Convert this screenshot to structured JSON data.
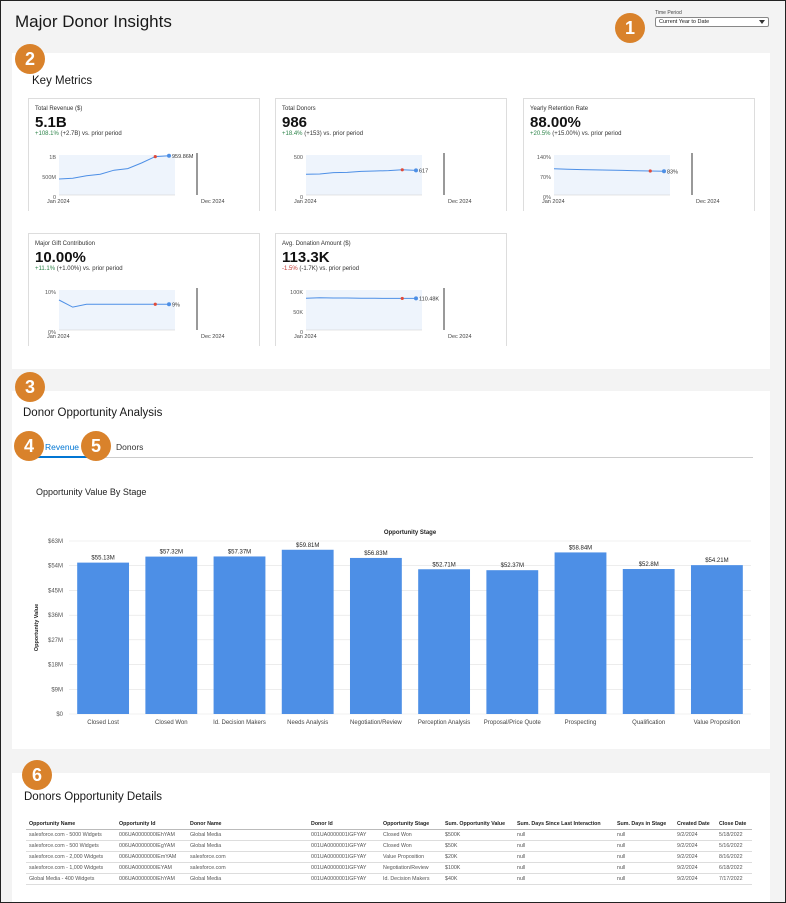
{
  "page": {
    "title": "Major Donor Insights"
  },
  "time_period": {
    "label": "Time Period",
    "value": "Current Year to Date"
  },
  "markers": [
    "1",
    "2",
    "3",
    "4",
    "5",
    "6"
  ],
  "key_metrics": {
    "title": "Key Metrics",
    "cards": [
      {
        "title": "Total Revenue ($)",
        "value": "5.1B",
        "change": "+108.1%",
        "change_detail": "(+2.7B) vs. prior period",
        "direction": "up",
        "y_ticks": [
          "1B",
          "500M",
          "0"
        ],
        "x_start": "Jan 2024",
        "x_end": "Dec 2024",
        "last_label": "959.86M",
        "spark": [
          0.4,
          0.42,
          0.48,
          0.52,
          0.62,
          0.66,
          0.8,
          0.96,
          0.98
        ],
        "spark_max": 1.0
      },
      {
        "title": "Total Donors",
        "value": "986",
        "change": "+18.4%",
        "change_detail": "(+153) vs. prior period",
        "direction": "up",
        "y_ticks": [
          "500",
          "0"
        ],
        "x_start": "Jan 2024",
        "x_end": "Dec 2024",
        "last_label": "617",
        "spark": [
          520,
          525,
          560,
          565,
          590,
          600,
          610,
          630,
          617
        ],
        "spark_max": 1000
      },
      {
        "title": "Yearly Retention Rate",
        "value": "88.00%",
        "change": "+20.5%",
        "change_detail": "(+15.00%) vs. prior period",
        "direction": "up",
        "y_ticks": [
          "140%",
          "70%",
          "0%"
        ],
        "x_start": "Jan 2024",
        "x_end": "Dec 2024",
        "last_label": "83%",
        "spark": [
          92,
          90,
          89,
          88,
          87,
          86,
          85,
          84,
          83
        ],
        "spark_max": 140
      },
      {
        "title": "Major Gift Contribution",
        "value": "10.00%",
        "change": "+11.1%",
        "change_detail": "(+1.00%) vs. prior period",
        "direction": "up",
        "y_ticks": [
          "10%",
          "0%"
        ],
        "x_start": "Jan 2024",
        "x_end": "Dec 2024",
        "last_label": "9%",
        "spark": [
          10.5,
          8,
          9,
          9,
          9,
          9,
          9,
          9,
          9
        ],
        "spark_max": 14
      },
      {
        "title": "Avg. Donation Amount ($)",
        "value": "113.3K",
        "change": "-1.5%",
        "change_detail": "(-1.7K) vs. prior period",
        "direction": "down",
        "y_ticks": [
          "100K",
          "50K",
          "0"
        ],
        "x_start": "Jan 2024",
        "x_end": "Dec 2024",
        "last_label": "110.48K",
        "spark": [
          111,
          113,
          112,
          112,
          111,
          111,
          110.5,
          110.5,
          110.48
        ],
        "spark_max": 140
      }
    ]
  },
  "opportunity": {
    "title": "Donor Opportunity Analysis",
    "tabs": [
      "Revenue",
      "Donors"
    ],
    "chart_title": "Opportunity Value By Stage"
  },
  "chart_data": {
    "type": "bar",
    "title": "Opportunity Stage",
    "ylabel": "Opportunity Value",
    "xlabel": "",
    "ylim": [
      0,
      63
    ],
    "y_ticks": [
      "$0",
      "$9M",
      "$18M",
      "$27M",
      "$36M",
      "$45M",
      "$54M",
      "$63M"
    ],
    "categories": [
      "Closed Lost",
      "Closed Won",
      "Id. Decision Makers",
      "Needs Analysis",
      "Negotiation/Review",
      "Perception Analysis",
      "Proposal/Price Quote",
      "Prospecting",
      "Qualification",
      "Value Proposition"
    ],
    "values": [
      55.13,
      57.32,
      57.37,
      59.81,
      56.83,
      52.71,
      52.37,
      58.84,
      52.8,
      54.21
    ],
    "data_labels": [
      "$55.13M",
      "$57.32M",
      "$57.37M",
      "$59.81M",
      "$56.83M",
      "$52.71M",
      "$52.37M",
      "$58.84M",
      "$52.8M",
      "$54.21M"
    ],
    "bar_color": "#4d8fe6",
    "grid": true
  },
  "details": {
    "title": "Donors Opportunity Details",
    "columns": [
      "Opportunity Name",
      "Opportunity Id",
      "Donor Name",
      "Donor Id",
      "Opportunity Stage",
      "Sum. Opportunity Value",
      "Sum. Days Since Last Interaction",
      "Sum. Days in Stage",
      "Created Date",
      "Close Date"
    ],
    "rows": [
      [
        "salesforce.com - 5000 Widgets",
        "006UA0000000IEhYAM",
        "Global Media",
        "001UA0000001IGFYAY",
        "Closed Won",
        "$500K",
        "null",
        "null",
        "9/2/2024",
        "5/18/2022"
      ],
      [
        "salesforce.com - 500 Widgets",
        "006UA0000000IEgYAM",
        "Global Media",
        "001UA0000001IGFYAY",
        "Closed Won",
        "$50K",
        "null",
        "null",
        "9/2/2024",
        "5/16/2022"
      ],
      [
        "salesforce.com - 2,000 Widgets",
        "006UA0000000IEmYAM",
        "salesforce.com",
        "001UA0000001IGFYAY",
        "Value Proposition",
        "$20K",
        "null",
        "null",
        "9/2/2024",
        "8/16/2022"
      ],
      [
        "salesforce.com - 1,000 Widgets",
        "006UA0000000IEYAM",
        "salesforce.com",
        "001UA0000001IGFYAY",
        "Negotiation/Review",
        "$100K",
        "null",
        "null",
        "9/2/2024",
        "6/18/2022"
      ],
      [
        "Global Media - 400 Widgets",
        "006UA0000000IEhYAM",
        "Global Media",
        "001UA0000001IGFYAY",
        "Id. Decision Makers",
        "$40K",
        "null",
        "null",
        "9/2/2024",
        "7/17/2022"
      ]
    ]
  },
  "colors": {
    "accent": "#0176d3",
    "marker": "#d9822b",
    "positive": "#2e844a",
    "negative": "#c23934",
    "spark_line": "#4d8fe6",
    "spark_end": "#e04a3a"
  }
}
